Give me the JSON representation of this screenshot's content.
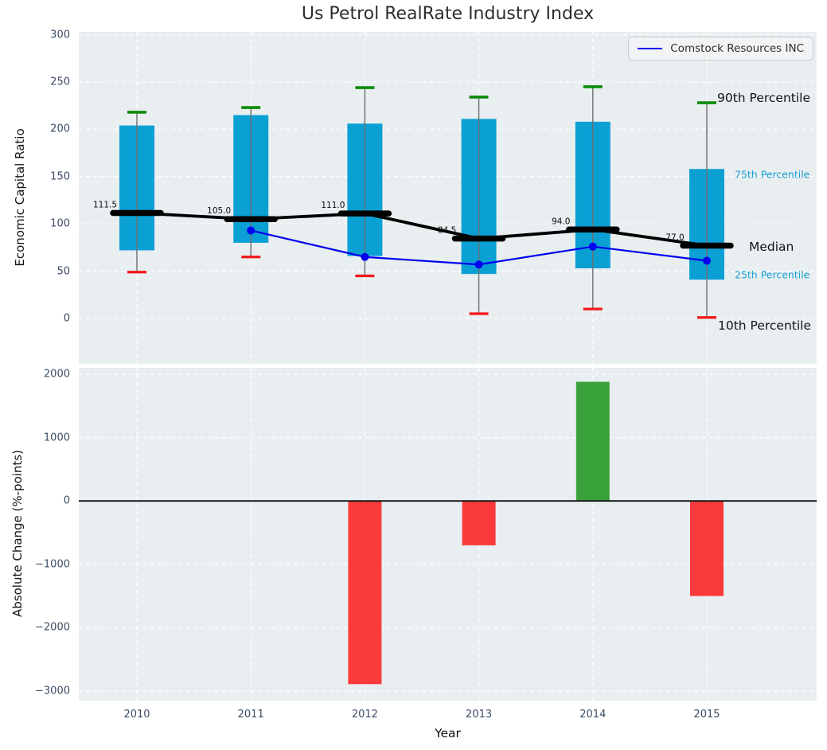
{
  "colors": {
    "plot_background": "#e9eef0",
    "grid": "#ffffff",
    "box_fill": "#0aa0d4",
    "whisker": "#6e6e6e",
    "cap_90th": "#0a8b0a",
    "cap_10th": "#f21818",
    "median": "#000000",
    "company_line": "#0000ee",
    "bar_positive": "#3aa23a",
    "bar_negative": "#fb3b3b",
    "tick_text": "#3b4d63",
    "annotation_small": "#189fd4"
  },
  "chart_data": [
    {
      "type": "boxplot",
      "title": "Us Petrol RealRate Industry Index",
      "ylabel": "Economic Capital Ratio",
      "ylim": [
        -48,
        303
      ],
      "yticks": [
        300,
        250,
        200,
        150,
        100,
        50,
        0
      ],
      "categories": [
        "2010",
        "2011",
        "2012",
        "2013",
        "2014",
        "2015"
      ],
      "grid": true,
      "legend": {
        "label": "Comstock Resources INC",
        "position": "upper right"
      },
      "boxes": [
        {
          "year": "2010",
          "p10": 49,
          "p25": 72,
          "median": 111.5,
          "p75": 204,
          "p90": 218
        },
        {
          "year": "2011",
          "p10": 65,
          "p25": 80,
          "median": 105.0,
          "p75": 215,
          "p90": 223
        },
        {
          "year": "2012",
          "p10": 45,
          "p25": 66,
          "median": 111.0,
          "p75": 206,
          "p90": 244
        },
        {
          "year": "2013",
          "p10": 5,
          "p25": 47,
          "median": 84.5,
          "p75": 211,
          "p90": 234
        },
        {
          "year": "2014",
          "p10": 10,
          "p25": 53,
          "median": 94.0,
          "p75": 208,
          "p90": 245
        },
        {
          "year": "2015",
          "p10": 1,
          "p25": 41,
          "median": 77.0,
          "p75": 158,
          "p90": 228
        }
      ],
      "median_labels": [
        "111.5",
        "105.0",
        "111.0",
        "84.5",
        "94.0",
        "77.0"
      ],
      "series": [
        {
          "name": "Comstock Resources INC",
          "values": [
            null,
            93,
            65,
            57,
            76,
            61
          ]
        }
      ],
      "annotations": [
        {
          "label": "90th Percentile",
          "x": 901,
          "value": 233,
          "style": "large"
        },
        {
          "label": "75th Percentile",
          "x": 923,
          "value": 152,
          "style": "small"
        },
        {
          "label": "Median",
          "x": 941,
          "value": 76,
          "style": "large"
        },
        {
          "label": "25th Percentile",
          "x": 923,
          "value": 46,
          "style": "small"
        },
        {
          "label": "10th Percentile",
          "x": 902,
          "value": -8,
          "style": "large"
        }
      ]
    },
    {
      "type": "bar",
      "ylabel": "Absolute Change (%-points)",
      "xlabel": "Year",
      "ylim": [
        -3150,
        2100
      ],
      "yticks": [
        2000,
        1000,
        0,
        -1000,
        -2000,
        -3000
      ],
      "categories": [
        "2010",
        "2011",
        "2012",
        "2013",
        "2014",
        "2015"
      ],
      "values": [
        null,
        null,
        -2890,
        -700,
        1880,
        -1500
      ],
      "zero_line": true
    }
  ]
}
